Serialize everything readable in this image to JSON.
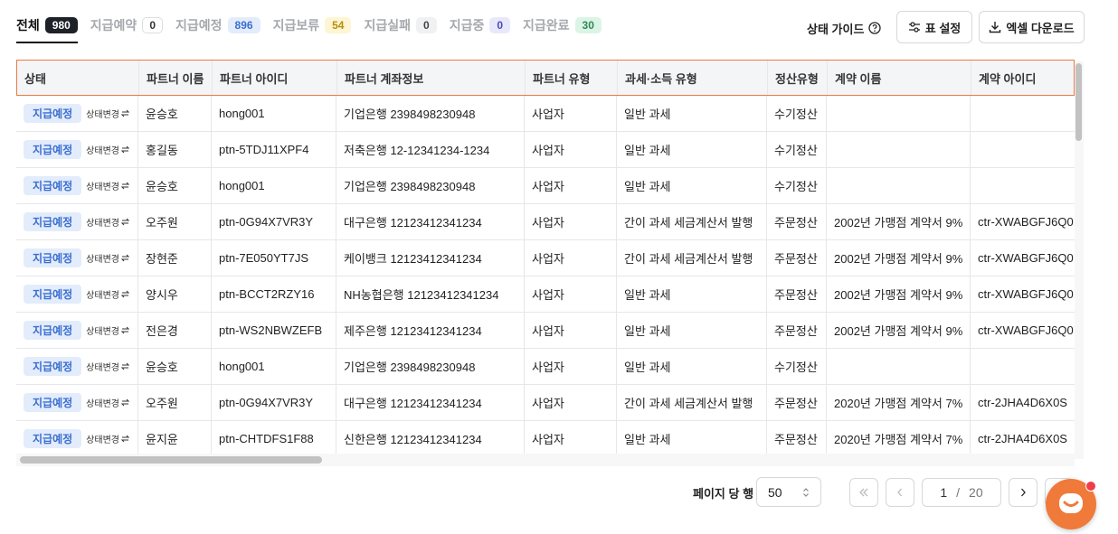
{
  "tabs": [
    {
      "label": "전체",
      "count": 980
    },
    {
      "label": "지급예약",
      "count": 0
    },
    {
      "label": "지급예정",
      "count": 896
    },
    {
      "label": "지급보류",
      "count": 54
    },
    {
      "label": "지급실패",
      "count": 0
    },
    {
      "label": "지급중",
      "count": 0
    },
    {
      "label": "지급완료",
      "count": 30
    }
  ],
  "toolbar": {
    "status_guide": "상태 가이드",
    "table_settings": "표 설정",
    "excel_download": "엑셀 다운로드"
  },
  "table": {
    "columns": [
      "상태",
      "파트너 이름",
      "파트너 아이디",
      "파트너 계좌정보",
      "파트너 유형",
      "과세·소득 유형",
      "정산유형",
      "계약 이름",
      "계약 아이디"
    ],
    "rows": [
      [
        "지급예정",
        "상태변경",
        "윤승호",
        "hong001",
        "기업은행 2398498230948",
        "사업자",
        "일반 과세",
        "수기정산",
        null,
        null
      ],
      [
        "지급예정",
        "상태변경",
        "홍길동",
        "ptn-5TDJ11XPF4",
        "저축은행 12-12341234-1234",
        "사업자",
        "일반 과세",
        "수기정산",
        null,
        null
      ],
      [
        "지급예정",
        "상태변경",
        "윤승호",
        "hong001",
        "기업은행 2398498230948",
        "사업자",
        "일반 과세",
        "수기정산",
        null,
        null
      ],
      [
        "지급예정",
        "상태변경",
        "오주원",
        "ptn-0G94X7VR3Y",
        "대구은행 12123412341234",
        "사업자",
        "간이 과세 세금계산서 발행",
        "주문정산",
        "2002년 가맹점 계약서 9%",
        "ctr-XWABGFJ6Q0"
      ],
      [
        "지급예정",
        "상태변경",
        "장현준",
        "ptn-7E050YT7JS",
        "케이뱅크 12123412341234",
        "사업자",
        "간이 과세 세금계산서 발행",
        "주문정산",
        "2002년 가맹점 계약서 9%",
        "ctr-XWABGFJ6Q0"
      ],
      [
        "지급예정",
        "상태변경",
        "양시우",
        "ptn-BCCT2RZY16",
        "NH농협은행 12123412341234",
        "사업자",
        "일반 과세",
        "주문정산",
        "2002년 가맹점 계약서 9%",
        "ctr-XWABGFJ6Q0"
      ],
      [
        "지급예정",
        "상태변경",
        "전은경",
        "ptn-WS2NBWZEFB",
        "제주은행 12123412341234",
        "사업자",
        "일반 과세",
        "주문정산",
        "2002년 가맹점 계약서 9%",
        "ctr-XWABGFJ6Q0"
      ],
      [
        "지급예정",
        "상태변경",
        "윤승호",
        "hong001",
        "기업은행 2398498230948",
        "사업자",
        "일반 과세",
        "수기정산",
        null,
        null
      ],
      [
        "지급예정",
        "상태변경",
        "오주원",
        "ptn-0G94X7VR3Y",
        "대구은행 12123412341234",
        "사업자",
        "간이 과세 세금계산서 발행",
        "주문정산",
        "2020년 가맹점 계약서 7%",
        "ctr-2JHA4D6X0S"
      ],
      [
        "지급예정",
        "상태변경",
        "윤지윤",
        "ptn-CHTDFS1F88",
        "신한은행 12123412341234",
        "사업자",
        "일반 과세",
        "주문정산",
        "2020년 가맹점 계약서 7%",
        "ctr-2JHA4D6X0S"
      ]
    ]
  },
  "pagination": {
    "rows_per_page_label": "페이지 당 행",
    "rows_per_page": 50,
    "current_page": 1,
    "separator": "/",
    "total_pages": 20
  }
}
